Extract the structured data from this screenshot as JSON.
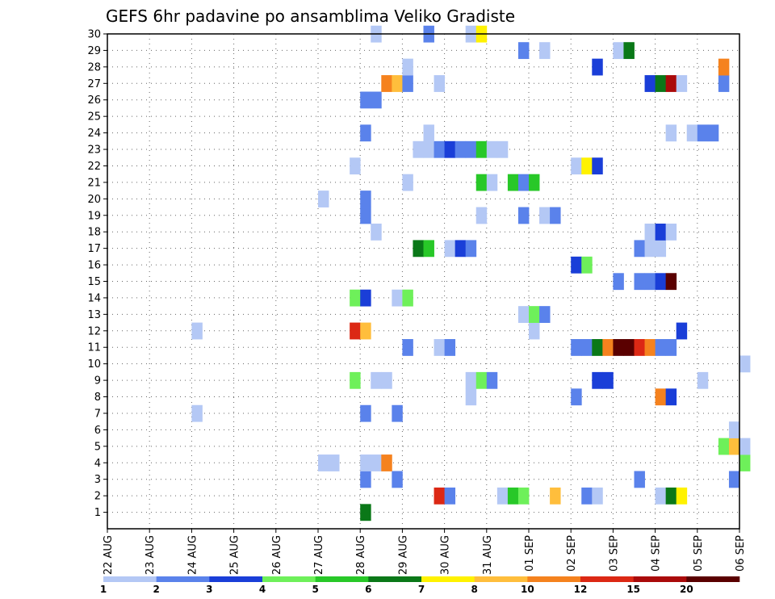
{
  "chart_data": {
    "type": "heatmap",
    "title": "GEFS 6hr padavine po ansamblima Veliko Gradiste",
    "x_ticks": [
      "22 AUG",
      "23 AUG",
      "24 AUG",
      "25 AUG",
      "26 AUG",
      "27 AUG",
      "28 AUG",
      "29 AUG",
      "30 AUG",
      "31 AUG",
      "01 SEP",
      "02 SEP",
      "03 SEP",
      "04 SEP",
      "05 SEP",
      "06 SEP"
    ],
    "y_ticks": [
      "1",
      "2",
      "3",
      "4",
      "5",
      "6",
      "7",
      "8",
      "9",
      "10",
      "11",
      "12",
      "13",
      "14",
      "15",
      "16",
      "17",
      "18",
      "19",
      "20",
      "21",
      "22",
      "23",
      "24",
      "25",
      "26",
      "27",
      "28",
      "29",
      "30"
    ],
    "ylim": [
      0,
      30
    ],
    "steps_per_day": 4,
    "grid": true,
    "legend_labels": [
      "1",
      "2",
      "3",
      "4",
      "5",
      "6",
      "7",
      "8",
      "10",
      "12",
      "15",
      "20"
    ],
    "legend_colors": [
      "#b4c8f5",
      "#5a82eb",
      "#1a3ed8",
      "#6ef05a",
      "#28c828",
      "#0a7818",
      "#fff200",
      "#ffbe3c",
      "#f5821e",
      "#dc2814",
      "#aa0a0a",
      "#5a0000"
    ],
    "legend_position": "bottom",
    "cells": [
      {
        "m": 1,
        "t": 24,
        "c": 6
      },
      {
        "m": 2,
        "t": 31,
        "c": 10
      },
      {
        "m": 2,
        "t": 32,
        "c": 2
      },
      {
        "m": 2,
        "t": 37,
        "c": 1
      },
      {
        "m": 2,
        "t": 38,
        "c": 5
      },
      {
        "m": 2,
        "t": 39,
        "c": 4
      },
      {
        "m": 2,
        "t": 42,
        "c": 8
      },
      {
        "m": 2,
        "t": 45,
        "c": 2
      },
      {
        "m": 2,
        "t": 46,
        "c": 1
      },
      {
        "m": 2,
        "t": 52,
        "c": 1
      },
      {
        "m": 2,
        "t": 53,
        "c": 6
      },
      {
        "m": 2,
        "t": 54,
        "c": 7
      },
      {
        "m": 3,
        "t": 24,
        "c": 2
      },
      {
        "m": 3,
        "t": 27,
        "c": 2
      },
      {
        "m": 3,
        "t": 50,
        "c": 2
      },
      {
        "m": 3,
        "t": 59,
        "c": 2
      },
      {
        "m": 4,
        "t": 20,
        "c": 1
      },
      {
        "m": 4,
        "t": 21,
        "c": 1
      },
      {
        "m": 4,
        "t": 24,
        "c": 1
      },
      {
        "m": 4,
        "t": 25,
        "c": 1
      },
      {
        "m": 4,
        "t": 26,
        "c": 9
      },
      {
        "m": 4,
        "t": 60,
        "c": 4
      },
      {
        "m": 5,
        "t": 58,
        "c": 4
      },
      {
        "m": 5,
        "t": 59,
        "c": 8
      },
      {
        "m": 5,
        "t": 60,
        "c": 1
      },
      {
        "m": 6,
        "t": 59,
        "c": 1
      },
      {
        "m": 7,
        "t": 8,
        "c": 1
      },
      {
        "m": 7,
        "t": 24,
        "c": 2
      },
      {
        "m": 7,
        "t": 27,
        "c": 2
      },
      {
        "m": 8,
        "t": 34,
        "c": 1
      },
      {
        "m": 8,
        "t": 44,
        "c": 2
      },
      {
        "m": 8,
        "t": 52,
        "c": 9
      },
      {
        "m": 8,
        "t": 53,
        "c": 3
      },
      {
        "m": 9,
        "t": 23,
        "c": 4
      },
      {
        "m": 9,
        "t": 25,
        "c": 1
      },
      {
        "m": 9,
        "t": 26,
        "c": 1
      },
      {
        "m": 9,
        "t": 34,
        "c": 1
      },
      {
        "m": 9,
        "t": 35,
        "c": 4
      },
      {
        "m": 9,
        "t": 36,
        "c": 2
      },
      {
        "m": 9,
        "t": 46,
        "c": 3
      },
      {
        "m": 9,
        "t": 47,
        "c": 3
      },
      {
        "m": 9,
        "t": 56,
        "c": 1
      },
      {
        "m": 10,
        "t": 60,
        "c": 1
      },
      {
        "m": 11,
        "t": 28,
        "c": 2
      },
      {
        "m": 11,
        "t": 31,
        "c": 1
      },
      {
        "m": 11,
        "t": 32,
        "c": 2
      },
      {
        "m": 11,
        "t": 44,
        "c": 2
      },
      {
        "m": 11,
        "t": 45,
        "c": 2
      },
      {
        "m": 11,
        "t": 46,
        "c": 6
      },
      {
        "m": 11,
        "t": 47,
        "c": 9
      },
      {
        "m": 11,
        "t": 48,
        "c": 12
      },
      {
        "m": 11,
        "t": 49,
        "c": 12
      },
      {
        "m": 11,
        "t": 50,
        "c": 10
      },
      {
        "m": 11,
        "t": 51,
        "c": 9
      },
      {
        "m": 11,
        "t": 52,
        "c": 2
      },
      {
        "m": 11,
        "t": 53,
        "c": 2
      },
      {
        "m": 12,
        "t": 8,
        "c": 1
      },
      {
        "m": 12,
        "t": 23,
        "c": 10
      },
      {
        "m": 12,
        "t": 24,
        "c": 8
      },
      {
        "m": 12,
        "t": 40,
        "c": 1
      },
      {
        "m": 12,
        "t": 54,
        "c": 3
      },
      {
        "m": 13,
        "t": 39,
        "c": 1
      },
      {
        "m": 13,
        "t": 40,
        "c": 4
      },
      {
        "m": 13,
        "t": 41,
        "c": 2
      },
      {
        "m": 14,
        "t": 23,
        "c": 4
      },
      {
        "m": 14,
        "t": 24,
        "c": 3
      },
      {
        "m": 14,
        "t": 27,
        "c": 1
      },
      {
        "m": 14,
        "t": 28,
        "c": 4
      },
      {
        "m": 15,
        "t": 48,
        "c": 2
      },
      {
        "m": 15,
        "t": 50,
        "c": 2
      },
      {
        "m": 15,
        "t": 51,
        "c": 2
      },
      {
        "m": 15,
        "t": 52,
        "c": 3
      },
      {
        "m": 15,
        "t": 53,
        "c": 12
      },
      {
        "m": 16,
        "t": 44,
        "c": 3
      },
      {
        "m": 16,
        "t": 45,
        "c": 4
      },
      {
        "m": 17,
        "t": 50,
        "c": 2
      },
      {
        "m": 17,
        "t": 51,
        "c": 1
      },
      {
        "m": 17,
        "t": 52,
        "c": 1
      },
      {
        "m": 17,
        "t": 29,
        "c": 6
      },
      {
        "m": 17,
        "t": 30,
        "c": 5
      },
      {
        "m": 17,
        "t": 32,
        "c": 1
      },
      {
        "m": 17,
        "t": 33,
        "c": 3
      },
      {
        "m": 17,
        "t": 34,
        "c": 2
      },
      {
        "m": 18,
        "t": 25,
        "c": 1
      },
      {
        "m": 18,
        "t": 51,
        "c": 1
      },
      {
        "m": 18,
        "t": 52,
        "c": 3
      },
      {
        "m": 18,
        "t": 53,
        "c": 1
      },
      {
        "m": 19,
        "t": 24,
        "c": 2
      },
      {
        "m": 19,
        "t": 35,
        "c": 1
      },
      {
        "m": 19,
        "t": 39,
        "c": 2
      },
      {
        "m": 19,
        "t": 41,
        "c": 1
      },
      {
        "m": 19,
        "t": 42,
        "c": 2
      },
      {
        "m": 20,
        "t": 20,
        "c": 1
      },
      {
        "m": 20,
        "t": 24,
        "c": 2
      },
      {
        "m": 21,
        "t": 28,
        "c": 1
      },
      {
        "m": 21,
        "t": 35,
        "c": 5
      },
      {
        "m": 21,
        "t": 36,
        "c": 1
      },
      {
        "m": 21,
        "t": 38,
        "c": 5
      },
      {
        "m": 21,
        "t": 39,
        "c": 2
      },
      {
        "m": 21,
        "t": 40,
        "c": 5
      },
      {
        "m": 22,
        "t": 23,
        "c": 1
      },
      {
        "m": 22,
        "t": 44,
        "c": 1
      },
      {
        "m": 22,
        "t": 45,
        "c": 7
      },
      {
        "m": 22,
        "t": 46,
        "c": 3
      },
      {
        "m": 23,
        "t": 29,
        "c": 1
      },
      {
        "m": 23,
        "t": 30,
        "c": 1
      },
      {
        "m": 23,
        "t": 31,
        "c": 2
      },
      {
        "m": 23,
        "t": 32,
        "c": 3
      },
      {
        "m": 23,
        "t": 33,
        "c": 2
      },
      {
        "m": 23,
        "t": 34,
        "c": 2
      },
      {
        "m": 23,
        "t": 35,
        "c": 5
      },
      {
        "m": 23,
        "t": 36,
        "c": 1
      },
      {
        "m": 23,
        "t": 37,
        "c": 1
      },
      {
        "m": 24,
        "t": 24,
        "c": 2
      },
      {
        "m": 24,
        "t": 30,
        "c": 1
      },
      {
        "m": 24,
        "t": 53,
        "c": 1
      },
      {
        "m": 24,
        "t": 55,
        "c": 1
      },
      {
        "m": 24,
        "t": 56,
        "c": 2
      },
      {
        "m": 24,
        "t": 57,
        "c": 2
      },
      {
        "m": 26,
        "t": 24,
        "c": 2
      },
      {
        "m": 26,
        "t": 25,
        "c": 2
      },
      {
        "m": 27,
        "t": 26,
        "c": 9
      },
      {
        "m": 27,
        "t": 27,
        "c": 8
      },
      {
        "m": 27,
        "t": 28,
        "c": 2
      },
      {
        "m": 27,
        "t": 31,
        "c": 1
      },
      {
        "m": 27,
        "t": 51,
        "c": 3
      },
      {
        "m": 27,
        "t": 52,
        "c": 6
      },
      {
        "m": 27,
        "t": 53,
        "c": 11
      },
      {
        "m": 27,
        "t": 54,
        "c": 1
      },
      {
        "m": 27,
        "t": 58,
        "c": 2
      },
      {
        "m": 28,
        "t": 28,
        "c": 1
      },
      {
        "m": 28,
        "t": 46,
        "c": 3
      },
      {
        "m": 28,
        "t": 58,
        "c": 9
      },
      {
        "m": 29,
        "t": 39,
        "c": 2
      },
      {
        "m": 29,
        "t": 41,
        "c": 1
      },
      {
        "m": 29,
        "t": 48,
        "c": 1
      },
      {
        "m": 29,
        "t": 49,
        "c": 6
      },
      {
        "m": 30,
        "t": 25,
        "c": 1
      },
      {
        "m": 30,
        "t": 30,
        "c": 2
      },
      {
        "m": 30,
        "t": 34,
        "c": 1
      },
      {
        "m": 30,
        "t": 35,
        "c": 7
      }
    ]
  }
}
